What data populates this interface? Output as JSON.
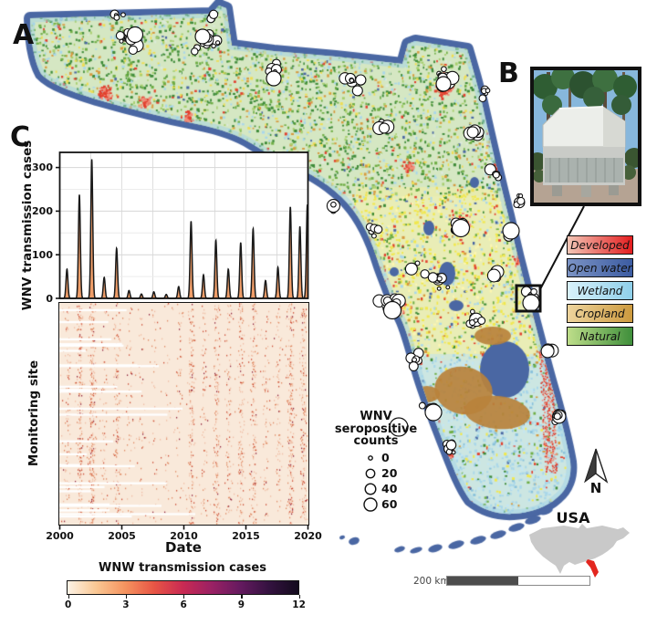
{
  "figure": {
    "panels": {
      "a": "A",
      "b": "B",
      "c": "C"
    }
  },
  "map": {
    "land_cover_legend": {
      "items": [
        {
          "label": "Developed",
          "color_left": "#f2c6b6",
          "color_right": "#e41d1f"
        },
        {
          "label": "Open water",
          "color_left": "#7b93c4",
          "color_right": "#3c5ca2"
        },
        {
          "label": "Wetland",
          "color_left": "#d9f1fa",
          "color_right": "#8fd0ea"
        },
        {
          "label": "Cropland",
          "color_left": "#eed49d",
          "color_right": "#cd9a3e"
        },
        {
          "label": "Natural",
          "color_left": "#bede8a",
          "color_right": "#3f8f3b"
        }
      ]
    },
    "size_legend": {
      "title_lines": [
        "WNV",
        "seropositive",
        "counts"
      ],
      "entries": [
        {
          "value": "0"
        },
        {
          "value": "20"
        },
        {
          "value": "40"
        },
        {
          "value": "60"
        }
      ]
    },
    "north_arrow_label": "N",
    "usa_inset_label": "USA",
    "scale_bar_label": "200 km",
    "palette": {
      "natural_green": "#3f8c3a",
      "natural_light": "#6fae45",
      "cropland_tan": "#d79a3f",
      "cropland_yellow": "#f1e84e",
      "wetland_blue": "#a9d7ea",
      "open_water_blue": "#4a67a3",
      "developed_red": "#e2402f"
    }
  },
  "chart_data": [
    {
      "type": "area",
      "title": "",
      "ylabel": "WNV transmission cases",
      "xlabel": "",
      "x_ticks": [
        2000,
        2005,
        2010,
        2015,
        2020
      ],
      "y_ticks": [
        0,
        100,
        200,
        300
      ],
      "xlim": [
        2000,
        2020
      ],
      "ylim": [
        0,
        333
      ],
      "grid": true,
      "fill_color": "#ef9d68",
      "line_color": "#1a1a1a",
      "years": [
        2000,
        2001,
        2002,
        2003,
        2004,
        2005,
        2006,
        2007,
        2008,
        2009,
        2010,
        2011,
        2012,
        2013,
        2014,
        2015,
        2016,
        2017,
        2018,
        2019,
        2020
      ],
      "annual_peak_values": [
        67,
        238,
        319,
        48,
        115,
        18,
        10,
        15,
        9,
        27,
        177,
        54,
        133,
        67,
        128,
        160,
        41,
        71,
        210,
        165,
        215
      ]
    },
    {
      "type": "heatmap",
      "title": "",
      "ylabel": "Monitoring site",
      "xlabel": "Date",
      "x_ticks": [
        2000,
        2005,
        2010,
        2015,
        2020
      ],
      "value_range": [
        0,
        12
      ],
      "background_value_color": "#f9e9da",
      "colorbar": {
        "title": "WNW transmission cases",
        "ticks": [
          0,
          3,
          6,
          9,
          12
        ],
        "gradient_stops": [
          "#fdf3e6",
          "#fac793",
          "#f5935f",
          "#e85545",
          "#c92a53",
          "#9a2164",
          "#641a5f",
          "#33123f",
          "#130b1d"
        ]
      }
    }
  ]
}
